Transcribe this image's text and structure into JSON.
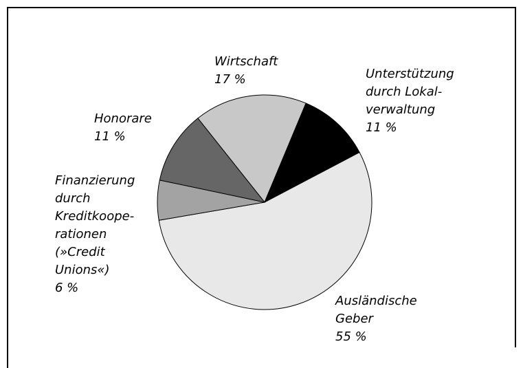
{
  "chart_data": {
    "type": "pie",
    "categories": [
      [
        "Wirtschaft"
      ],
      [
        "Unterstützung",
        "durch Lokal-",
        "verwaltung"
      ],
      [
        "Ausländische",
        "Geber"
      ],
      [
        "Finanzierung",
        "durch",
        "Kreditkoope-",
        "rationen",
        "(»Credit",
        "Unions«)"
      ],
      [
        "Honorare"
      ]
    ],
    "values": [
      17,
      11,
      55,
      6,
      11
    ],
    "value_labels": [
      "17 %",
      "11 %",
      "55 %",
      "6 %",
      "11 %"
    ],
    "colors": [
      "#c8c8c8",
      "#000000",
      "#e8e8e8",
      "#a3a3a3",
      "#666666"
    ]
  }
}
